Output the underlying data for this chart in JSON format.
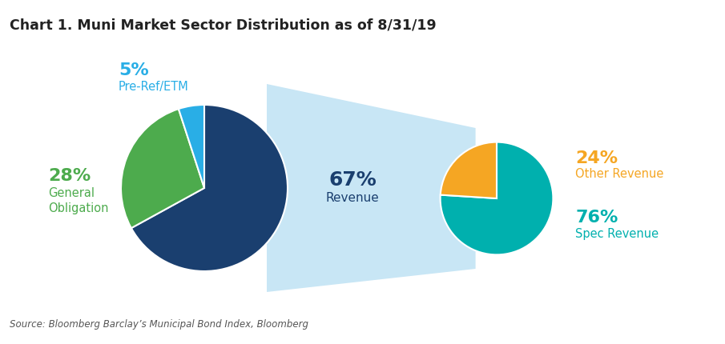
{
  "title": "Chart 1. Muni Market Sector Distribution as of 8/31/19",
  "source": "Source: Bloomberg Barclay’s Municipal Bond Index, Bloomberg",
  "left_pie": {
    "values": [
      67,
      28,
      5
    ],
    "labels": [
      "Revenue",
      "General Obligation",
      "Pre-Ref/ETM"
    ],
    "colors": [
      "#1a3f6f",
      "#4dab4d",
      "#29aee6"
    ],
    "start_angle": 90
  },
  "right_pie": {
    "values": [
      76,
      24
    ],
    "labels": [
      "Spec Revenue",
      "Other Revenue"
    ],
    "colors": [
      "#00b0ae",
      "#f5a623"
    ],
    "start_angle": 90
  },
  "funnel_color": "#c8e6f5",
  "label_colors": {
    "Revenue": "#1a3f6f",
    "General Obligation": "#4dab4d",
    "Pre-Ref/ETM": "#29aee6",
    "Spec Revenue": "#00b0ae",
    "Other Revenue": "#f5a623"
  },
  "bg_color": "#ffffff",
  "title_color": "#222222",
  "source_color": "#555555"
}
